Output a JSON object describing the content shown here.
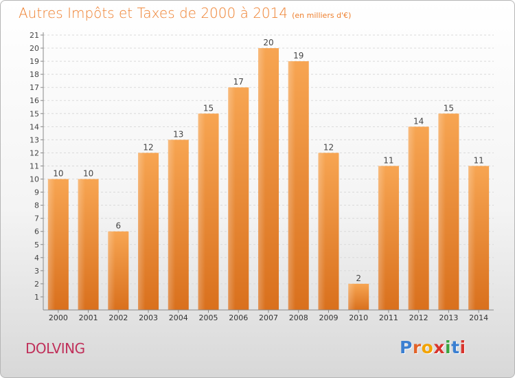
{
  "header": {
    "title": "Autres Impôts et Taxes de 2000 à 2014",
    "subtitle": "(en milliers d'€)"
  },
  "footer": {
    "city": "DOLVING",
    "logo": "Proxiti",
    "logo_colors": [
      "#3b7fd1",
      "#e2632a",
      "#f2a300",
      "#d8342d",
      "#3aa53f",
      "#3b7fd1",
      "#d8342d"
    ]
  },
  "chart_data": {
    "type": "bar",
    "categories": [
      "2000",
      "2001",
      "2002",
      "2003",
      "2004",
      "2005",
      "2006",
      "2007",
      "2008",
      "2009",
      "2010",
      "2011",
      "2012",
      "2013",
      "2014"
    ],
    "values": [
      10,
      10,
      6,
      12,
      13,
      15,
      17,
      20,
      19,
      12,
      2,
      11,
      14,
      15,
      11
    ],
    "data_labels": [
      "10",
      "10",
      "6",
      "12",
      "13",
      "15",
      "17",
      "20",
      "19",
      "12",
      "2",
      "11",
      "14",
      "15",
      "11"
    ],
    "y_ticks": [
      "1",
      "2",
      "3",
      "4",
      "5",
      "6",
      "7",
      "8",
      "9",
      "10",
      "11",
      "12",
      "13",
      "14",
      "15",
      "16",
      "17",
      "18",
      "19",
      "20",
      "21"
    ],
    "ylim": [
      0,
      21
    ],
    "grid": true,
    "bar_color": "#ee8d33"
  }
}
